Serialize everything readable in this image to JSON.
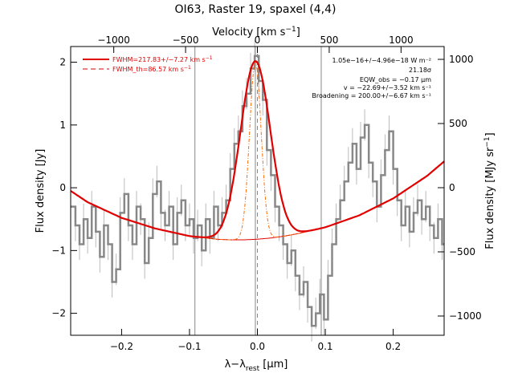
{
  "chart_data": {
    "type": "line",
    "title": "OI63, Raster 19, spaxel (4,4)",
    "xlabel": "λ−λ",
    "xlabel_sub": "rest",
    "xlabel_unit": " [μm]",
    "ylabel": "Flux density [Jy]",
    "top_axis_label": "Velocity [km s",
    "top_axis_label_sup": "−1",
    "top_axis_label_end": "]",
    "right_axis_label": "Flux density [MJy sr",
    "right_axis_label_sup": "−1",
    "right_axis_label_end": "]",
    "xlim": [
      -0.275,
      0.275
    ],
    "ylim": [
      -2.35,
      2.25
    ],
    "velocity_lim": [
      -1300,
      1300
    ],
    "right_ylim": [
      -1150,
      1100
    ],
    "xticks": [
      {
        "v": -0.2,
        "t": "−0.2"
      },
      {
        "v": -0.1,
        "t": "−0.1"
      },
      {
        "v": 0.0,
        "t": "0.0"
      },
      {
        "v": 0.1,
        "t": "0.1"
      },
      {
        "v": 0.2,
        "t": "0.2"
      }
    ],
    "yticks": [
      {
        "v": -2,
        "t": "−2"
      },
      {
        "v": -1,
        "t": "−1"
      },
      {
        "v": 0,
        "t": "0"
      },
      {
        "v": 1,
        "t": "1"
      },
      {
        "v": 2,
        "t": "2"
      }
    ],
    "top_ticks": [
      {
        "v": -1000,
        "t": "−1000"
      },
      {
        "v": -500,
        "t": "−500"
      },
      {
        "v": 0,
        "t": "0"
      },
      {
        "v": 500,
        "t": "500"
      },
      {
        "v": 1000,
        "t": "1000"
      }
    ],
    "right_ticks": [
      {
        "v": -1000,
        "t": "−1000"
      },
      {
        "v": -500,
        "t": "−500"
      },
      {
        "v": 0,
        "t": "0"
      },
      {
        "v": 500,
        "t": "500"
      },
      {
        "v": 1000,
        "t": "1000"
      }
    ],
    "vlines": [
      -0.092,
      -0.003,
      0.094
    ],
    "dashed_vline": 0.0,
    "legend": [
      {
        "label": "FWHM=217.83+/−7.27 km s",
        "sup": "−1",
        "color": "#e00000",
        "style": "solid"
      },
      {
        "label": "FWHM_th=86.57 km s",
        "sup": "−1",
        "color": "#e00000",
        "style": "dashed"
      }
    ],
    "annotations": [
      "1.05e−16+/−4.96e−18 W m⁻²",
      "21.18σ",
      "EQW_obs = −0.17 μm",
      "v = −22.69+/−3.52 km s⁻¹",
      "Broadening = 200.00+/−6.67 km s⁻¹"
    ],
    "spectrum": {
      "x": [
        -0.275,
        -0.268,
        -0.262,
        -0.256,
        -0.25,
        -0.244,
        -0.238,
        -0.232,
        -0.226,
        -0.22,
        -0.214,
        -0.208,
        -0.202,
        -0.196,
        -0.19,
        -0.184,
        -0.178,
        -0.172,
        -0.166,
        -0.16,
        -0.154,
        -0.148,
        -0.142,
        -0.136,
        -0.13,
        -0.124,
        -0.118,
        -0.112,
        -0.106,
        -0.1,
        -0.094,
        -0.088,
        -0.082,
        -0.076,
        -0.07,
        -0.064,
        -0.058,
        -0.052,
        -0.046,
        -0.04,
        -0.034,
        -0.028,
        -0.022,
        -0.016,
        -0.01,
        -0.004,
        0.002,
        0.008,
        0.014,
        0.02,
        0.026,
        0.032,
        0.038,
        0.044,
        0.05,
        0.056,
        0.062,
        0.068,
        0.074,
        0.08,
        0.086,
        0.092,
        0.098,
        0.104,
        0.11,
        0.116,
        0.122,
        0.128,
        0.134,
        0.14,
        0.146,
        0.152,
        0.158,
        0.164,
        0.17,
        0.176,
        0.182,
        0.188,
        0.194,
        0.2,
        0.206,
        0.212,
        0.218,
        0.224,
        0.23,
        0.236,
        0.242,
        0.248,
        0.254,
        0.26,
        0.266,
        0.272
      ],
      "y": [
        -0.3,
        -0.6,
        -0.9,
        -0.5,
        -0.8,
        -0.3,
        -0.7,
        -1.1,
        -0.6,
        -0.9,
        -1.5,
        -1.3,
        -0.4,
        -0.1,
        -0.6,
        -0.9,
        -0.3,
        -0.5,
        -1.2,
        -0.8,
        -0.1,
        0.1,
        -0.4,
        -0.6,
        -0.3,
        -0.9,
        -0.4,
        -0.2,
        -0.6,
        -0.5,
        -0.8,
        -0.6,
        -1.0,
        -0.5,
        -0.8,
        -0.3,
        -0.6,
        -0.4,
        -0.2,
        0.3,
        0.7,
        0.9,
        1.3,
        1.5,
        1.9,
        2.1,
        1.7,
        1.4,
        0.6,
        0.2,
        -0.3,
        -0.6,
        -0.9,
        -1.2,
        -1.0,
        -1.4,
        -1.7,
        -1.5,
        -1.9,
        -2.2,
        -2.0,
        -1.7,
        -2.1,
        -1.4,
        -0.9,
        -0.5,
        -0.2,
        0.1,
        0.4,
        0.7,
        0.3,
        0.8,
        1.0,
        0.4,
        0.1,
        -0.3,
        0.2,
        0.6,
        0.9,
        0.3,
        -0.2,
        -0.6,
        -0.3,
        -0.7,
        -0.4,
        -0.2,
        -0.5,
        -0.3,
        -0.6,
        -0.8,
        -0.5,
        -0.9
      ],
      "err": 0.25
    },
    "baseline": {
      "x": [
        -0.275,
        -0.25,
        -0.2,
        -0.15,
        -0.1,
        -0.06,
        -0.04,
        -0.02,
        0.0,
        0.02,
        0.04,
        0.06,
        0.1,
        0.15,
        0.2,
        0.25,
        0.275
      ],
      "y": [
        -0.05,
        -0.23,
        -0.48,
        -0.65,
        -0.77,
        -0.82,
        -0.83,
        -0.83,
        -0.82,
        -0.8,
        -0.77,
        -0.73,
        -0.63,
        -0.44,
        -0.17,
        0.19,
        0.42
      ]
    },
    "fit_line": {
      "amplitude": 2.84,
      "center": -0.003,
      "sigma": 0.022
    },
    "thermal_line": {
      "amplitude": 2.84,
      "center": -0.003,
      "sigma": 0.0085
    }
  }
}
